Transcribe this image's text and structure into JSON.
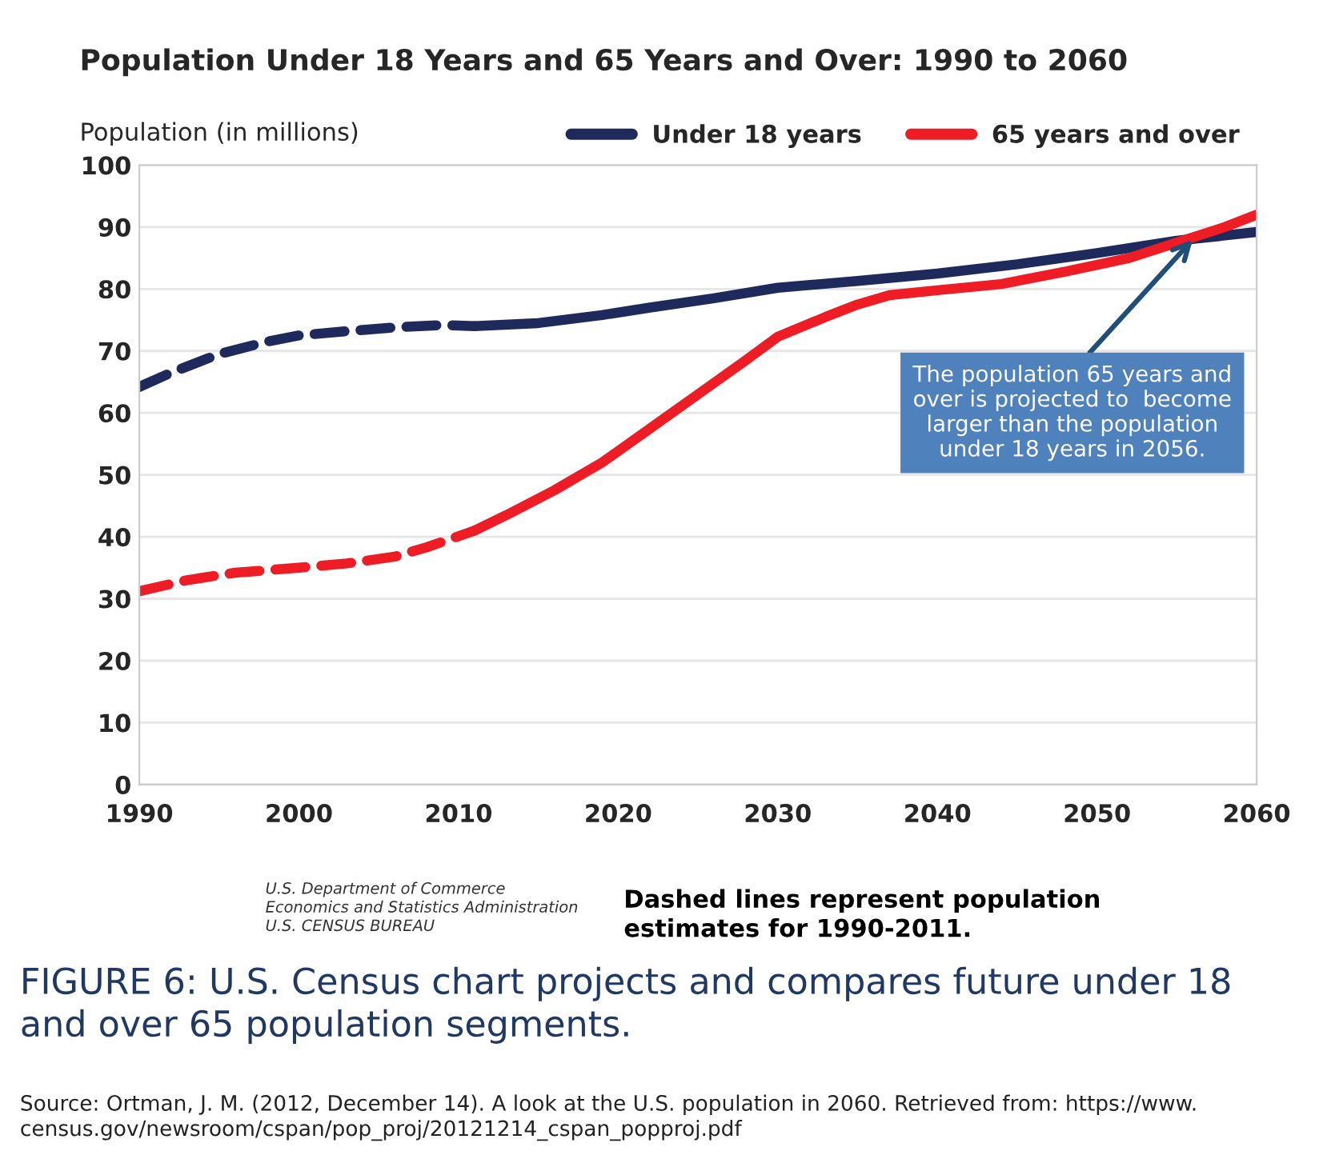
{
  "chart_data": {
    "type": "line",
    "title": "Population Under 18 Years and 65 Years and Over: 1990 to 2060",
    "ylabel": "Population (in millions)",
    "xlim": [
      1990,
      2060
    ],
    "xticks": [
      1990,
      2000,
      2010,
      2020,
      2030,
      2040,
      2050,
      2060
    ],
    "ylim": [
      0,
      100
    ],
    "yticks": [
      0,
      10,
      20,
      30,
      40,
      50,
      60,
      70,
      80,
      90,
      100
    ],
    "grid": "y",
    "legend": "top right",
    "marker": "none",
    "series": [
      {
        "color": "#1f2a5c",
        "line_style": "dashed",
        "x": [
          1990,
          1992,
          1995,
          1998,
          2000,
          2003,
          2006,
          2009,
          2011
        ],
        "values": [
          64.2,
          66.5,
          69.5,
          71.5,
          72.5,
          73.2,
          73.8,
          74.2,
          74.0
        ]
      },
      {
        "name": "Under 18 years",
        "color": "#1f2a5c",
        "line_style": "solid",
        "x": [
          2011,
          2015,
          2019,
          2022,
          2026,
          2030,
          2035,
          2040,
          2045,
          2050,
          2055,
          2060
        ],
        "values": [
          74.0,
          74.5,
          75.8,
          77,
          78.5,
          80.2,
          81.3,
          82.5,
          84,
          85.8,
          87.8,
          89.2
        ]
      },
      {
        "color": "#ee1c25",
        "line_style": "dashed",
        "x": [
          1990,
          1993,
          1996,
          2000,
          2003,
          2006,
          2008,
          2011
        ],
        "values": [
          31.2,
          33,
          34.2,
          35,
          35.7,
          36.8,
          38.3,
          41
        ]
      },
      {
        "name": "65 years and over",
        "color": "#ee1c25",
        "line_style": "solid",
        "x": [
          2011,
          2013,
          2016,
          2019,
          2022,
          2025,
          2028,
          2030,
          2033,
          2035,
          2037,
          2040,
          2044,
          2048,
          2052,
          2055,
          2058,
          2060
        ],
        "values": [
          41,
          43.5,
          47.5,
          52,
          57.5,
          63,
          68.5,
          72.3,
          75.5,
          77.5,
          79,
          79.8,
          80.8,
          82.8,
          85,
          87.5,
          90,
          92
        ]
      }
    ],
    "annotations": [
      {
        "text": "The population 65 years and\nover is projected to  become\nlarger than the population\nunder 18 years in 2056.",
        "x": 2056,
        "y": 88
      },
      "U.S. Department of Commerce\nEconomics and Statistics Administration\nU.S. CENSUS BUREAU",
      "Dashed lines represent population\nestimates for 1990-2011.",
      "FIGURE 6: U.S. Census chart projects and compares future under 18\nand over 65 population segments.",
      "Source: Ortman, J. M. (2012, December 14). A look at the U.S. population in 2060. Retrieved from: https://www.\ncensus.gov/newsroom/cspan/pop_proj/20121214_cspan_popproj.pdf"
    ]
  }
}
